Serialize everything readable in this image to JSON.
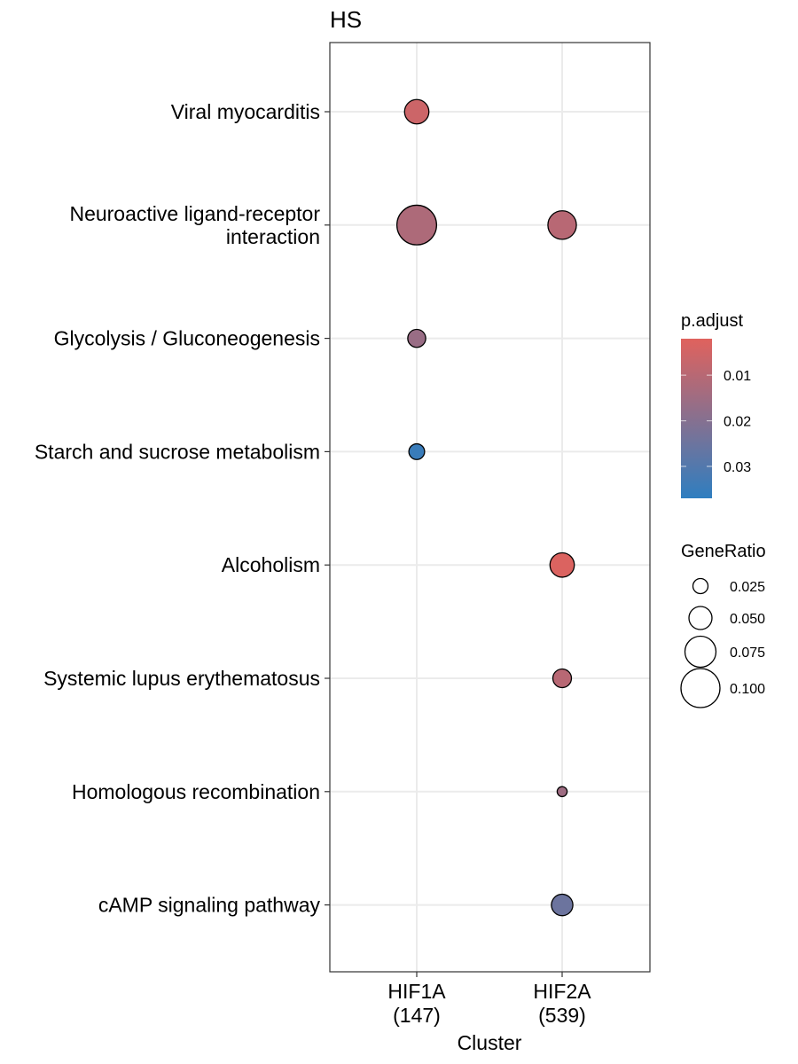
{
  "chart_data": {
    "type": "scatter",
    "title": "HS",
    "xlabel": "Cluster",
    "ylabel": "",
    "x_categories": [
      {
        "lines": [
          "HIF1A",
          "(147)"
        ]
      },
      {
        "lines": [
          "HIF2A",
          "(539)"
        ]
      }
    ],
    "y_categories": [
      {
        "lines": [
          "Viral myocarditis"
        ]
      },
      {
        "lines": [
          "Neuroactive ligand-receptor",
          "interaction"
        ]
      },
      {
        "lines": [
          "Glycolysis / Gluconeogenesis"
        ]
      },
      {
        "lines": [
          "Starch and sucrose metabolism"
        ]
      },
      {
        "lines": [
          "Alcoholism"
        ]
      },
      {
        "lines": [
          "Systemic lupus erythematosus"
        ]
      },
      {
        "lines": [
          "Homologous recombination"
        ]
      },
      {
        "lines": [
          "cAMP signaling pathway"
        ]
      }
    ],
    "points": [
      {
        "cluster": 0,
        "term": 0,
        "gene_ratio": 0.054,
        "p_adjust": 0.006
      },
      {
        "cluster": 0,
        "term": 1,
        "gene_ratio": 0.102,
        "p_adjust": 0.012
      },
      {
        "cluster": 1,
        "term": 1,
        "gene_ratio": 0.067,
        "p_adjust": 0.01
      },
      {
        "cluster": 0,
        "term": 2,
        "gene_ratio": 0.034,
        "p_adjust": 0.016
      },
      {
        "cluster": 0,
        "term": 3,
        "gene_ratio": 0.027,
        "p_adjust": 0.035
      },
      {
        "cluster": 1,
        "term": 4,
        "gene_ratio": 0.054,
        "p_adjust": 0.003
      },
      {
        "cluster": 1,
        "term": 5,
        "gene_ratio": 0.036,
        "p_adjust": 0.01
      },
      {
        "cluster": 1,
        "term": 6,
        "gene_ratio": 0.009,
        "p_adjust": 0.015
      },
      {
        "cluster": 1,
        "term": 7,
        "gene_ratio": 0.045,
        "p_adjust": 0.025
      }
    ],
    "color_legend": {
      "title": "p.adjust",
      "breaks": [
        0.01,
        0.02,
        0.03
      ],
      "labels": [
        "0.01",
        "0.02",
        "0.03"
      ],
      "range": [
        0.002,
        0.037
      ],
      "low_color": "#e0625d",
      "high_color": "#2f7ec0"
    },
    "size_legend": {
      "title": "GeneRatio",
      "breaks": [
        0.025,
        0.05,
        0.075,
        0.1
      ],
      "labels": [
        "0.025",
        "0.050",
        "0.075",
        "0.100"
      ]
    },
    "grid": true,
    "legend_position": "right"
  }
}
